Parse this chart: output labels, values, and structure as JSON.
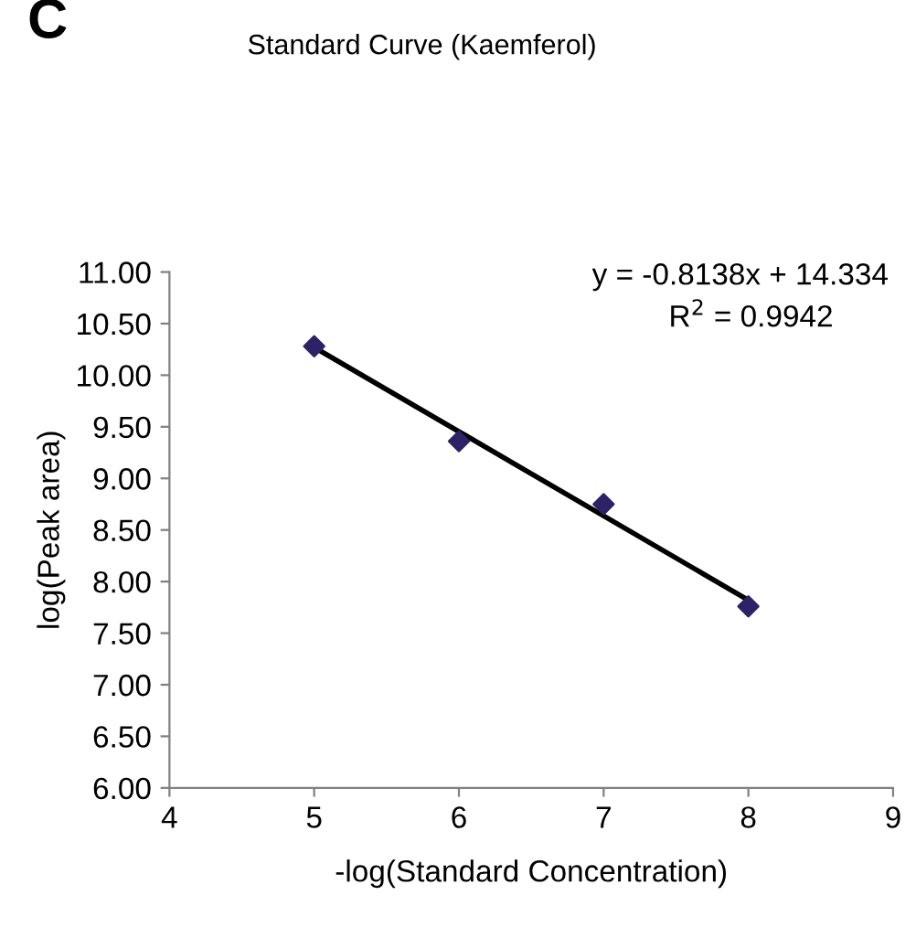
{
  "chart_data": {
    "type": "scatter",
    "title": "Standard Curve (Kaemferol)",
    "xlabel": "-log(Standard Concentration)",
    "ylabel": "log(Peak area)",
    "grid": false,
    "series": [
      {
        "color": "#2e2266",
        "x": [
          5,
          6,
          7,
          8
        ],
        "values": [
          10.28,
          9.36,
          8.75,
          7.76
        ],
        "marker": "diamond"
      },
      {
        "type": "line",
        "color": "#000000",
        "x": [
          5,
          8
        ],
        "values": [
          10.27,
          7.82
        ],
        "line_style": "solid"
      }
    ],
    "xlim": [
      4,
      9
    ],
    "xticks": [
      4,
      5,
      6,
      7,
      8,
      9
    ],
    "ylim": [
      6,
      11
    ],
    "yticks": [
      {
        "value": 6,
        "label": "6.00"
      },
      {
        "value": 6.5,
        "label": "6.50"
      },
      {
        "value": 7,
        "label": "7.00"
      },
      {
        "value": 7.5,
        "label": "7.50"
      },
      {
        "value": 8,
        "label": "8.00"
      },
      {
        "value": 8.5,
        "label": "8.50"
      },
      {
        "value": 9,
        "label": "9.00"
      },
      {
        "value": 9.5,
        "label": "9.50"
      },
      {
        "value": 10,
        "label": "10.00"
      },
      {
        "value": 10.5,
        "label": "10.50"
      },
      {
        "value": 11,
        "label": "11.00"
      }
    ],
    "annotations": [
      "C",
      "y = -0.8138x + 14.334",
      "R$^{2}$ = 0.9942"
    ]
  }
}
